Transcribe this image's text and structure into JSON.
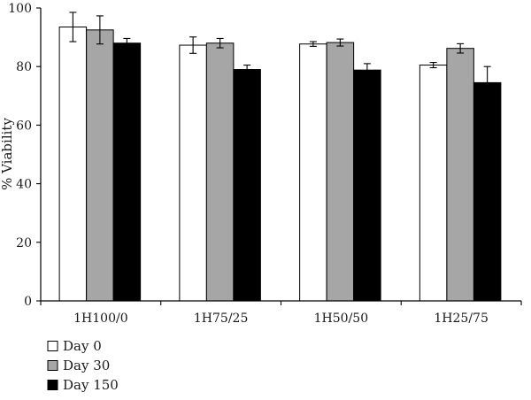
{
  "chart_data": {
    "type": "bar",
    "title": "",
    "xlabel": "",
    "ylabel": "% Viability",
    "ylim": [
      0,
      100
    ],
    "yticks": [
      0,
      20,
      40,
      60,
      80,
      100
    ],
    "grid": false,
    "legend_position": "bottom-left",
    "categories": [
      "1H100/0",
      "1H75/25",
      "1H50/50",
      "1H25/75"
    ],
    "series": [
      {
        "name": "Day 0",
        "color": "#ffffff",
        "values": [
          93.5,
          87.3,
          87.7,
          80.5
        ],
        "errors": [
          5.0,
          2.8,
          0.8,
          0.9
        ]
      },
      {
        "name": "Day 30",
        "color": "#a6a6a6",
        "values": [
          92.5,
          88.0,
          88.2,
          86.2
        ],
        "errors": [
          4.8,
          1.6,
          1.2,
          1.6
        ]
      },
      {
        "name": "Day 150",
        "color": "#000000",
        "values": [
          88.0,
          79.0,
          78.8,
          74.5
        ],
        "errors": [
          1.6,
          1.5,
          2.2,
          5.5
        ]
      }
    ]
  }
}
